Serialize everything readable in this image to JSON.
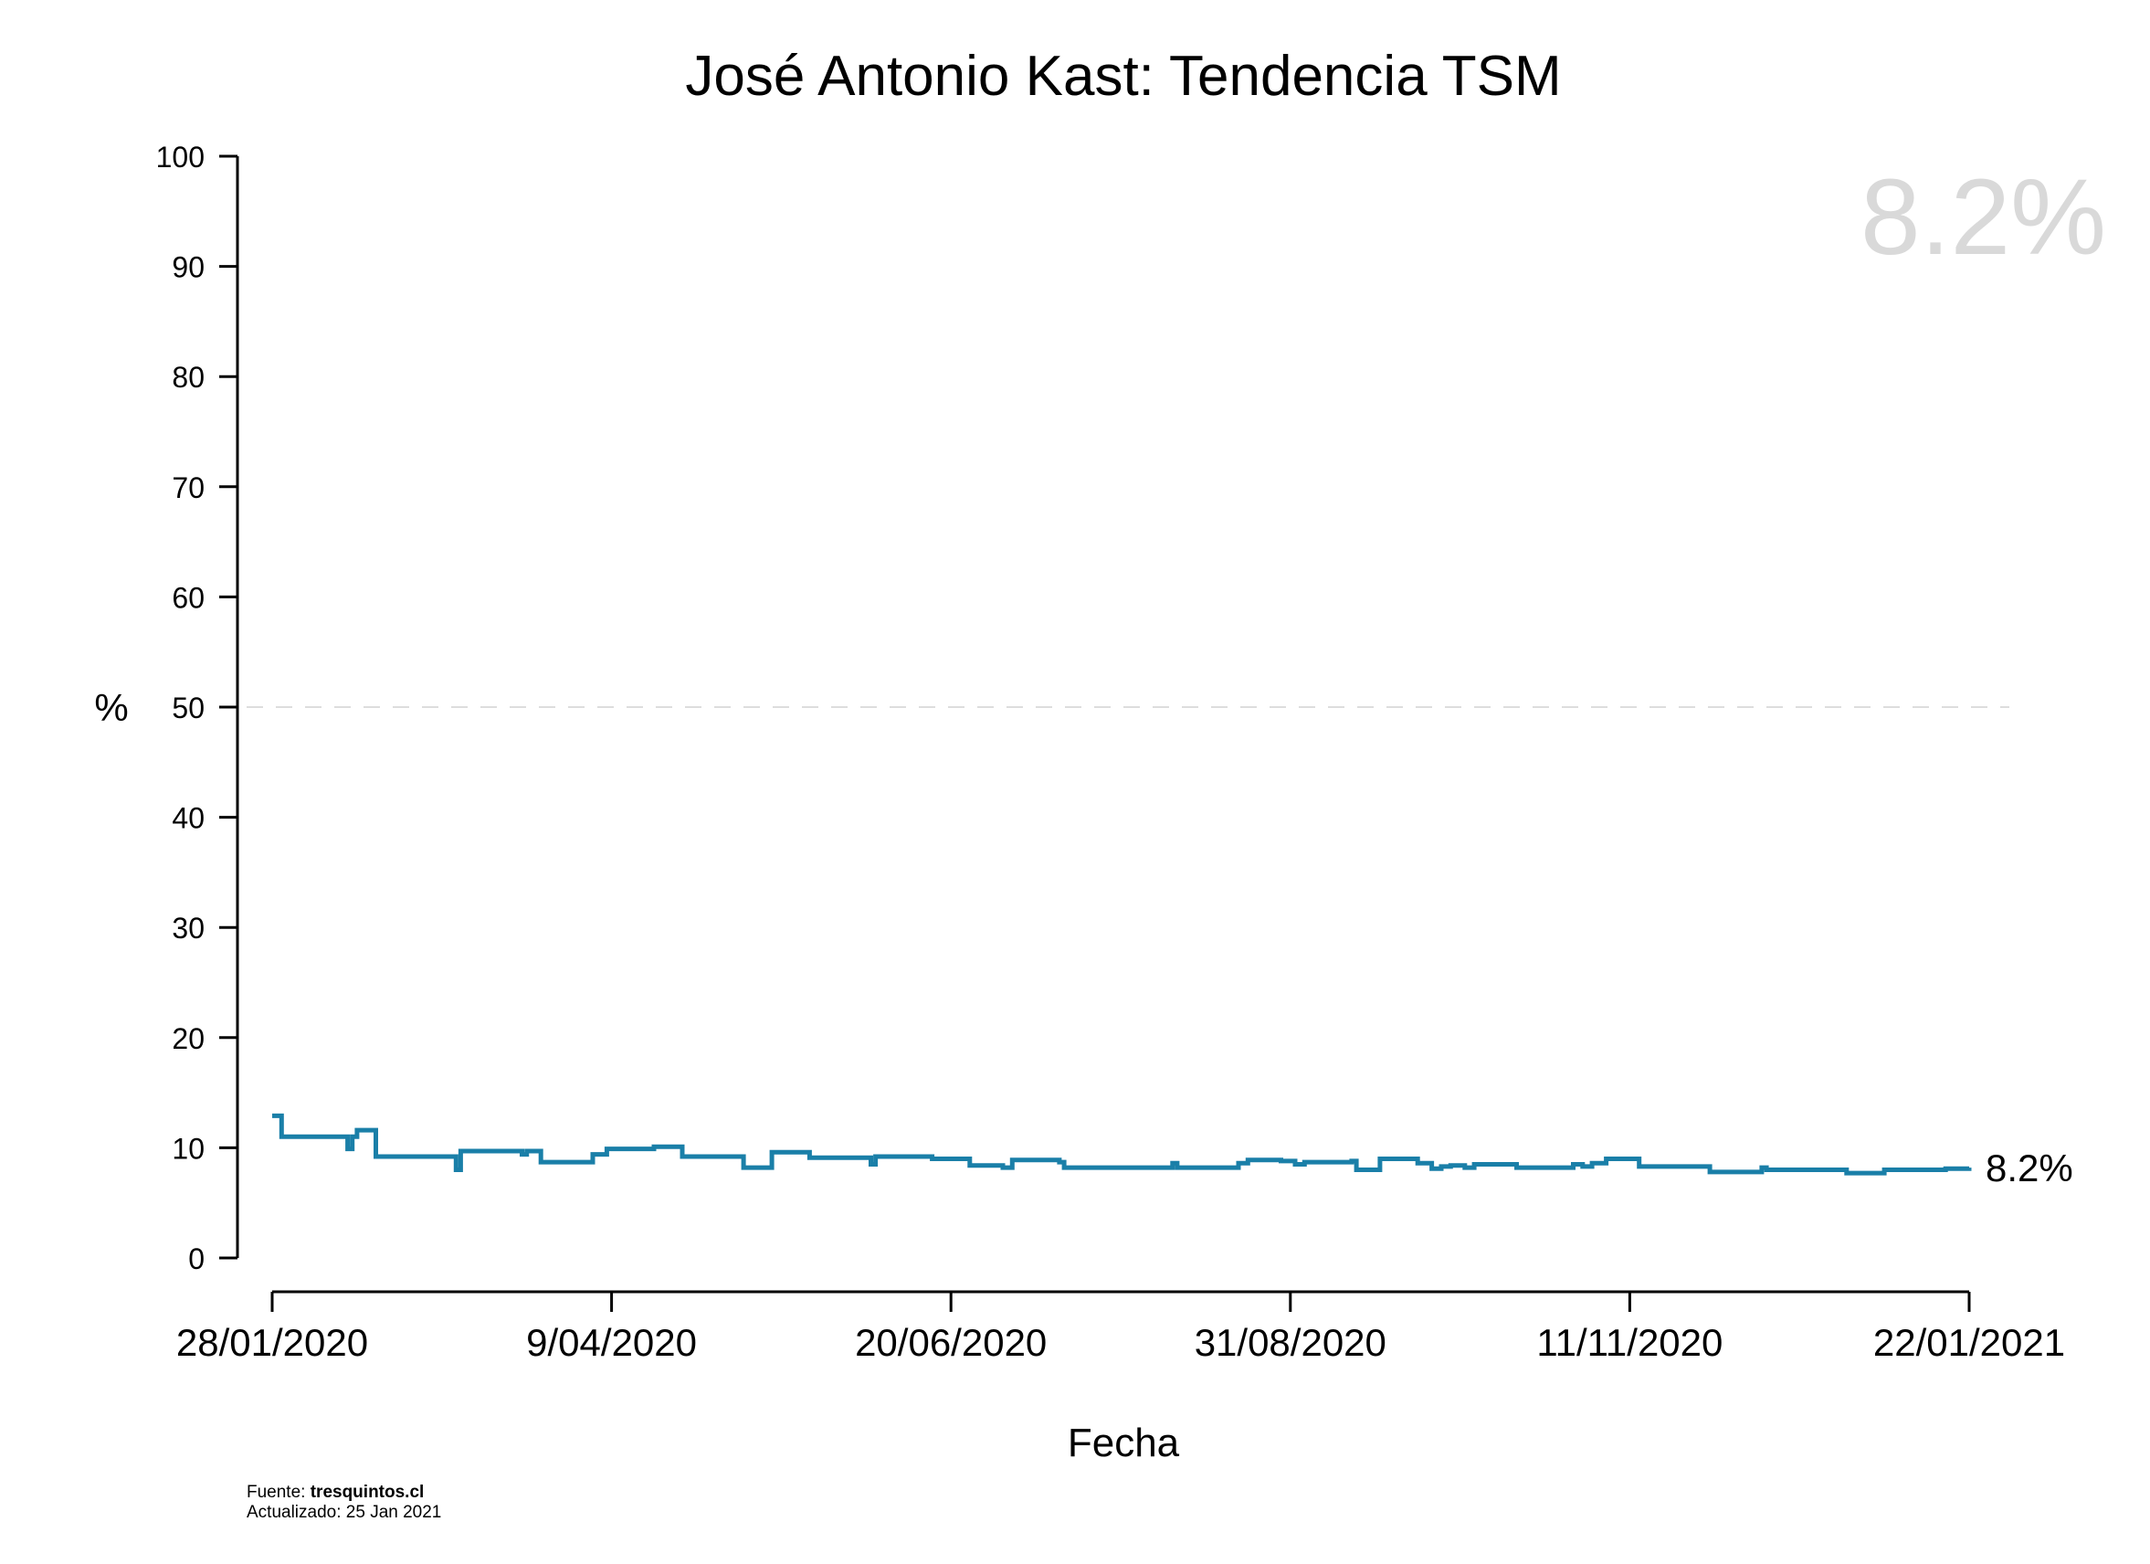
{
  "chart_data": {
    "type": "line",
    "title": "José Antonio Kast: Tendencia TSM",
    "xlabel": "Fecha",
    "ylabel": "%",
    "ylim": [
      0,
      100
    ],
    "yticks": [
      0,
      10,
      20,
      30,
      40,
      50,
      60,
      70,
      80,
      90,
      100
    ],
    "xlim": [
      "2020-01-28",
      "2021-01-22"
    ],
    "xticks": [
      {
        "date": "2020-01-28",
        "label": "28/01/2020"
      },
      {
        "date": "2020-04-09",
        "label": "9/04/2020"
      },
      {
        "date": "2020-06-20",
        "label": "20/06/2020"
      },
      {
        "date": "2020-08-31",
        "label": "31/08/2020"
      },
      {
        "date": "2020-11-11",
        "label": "11/11/2020"
      },
      {
        "date": "2021-01-22",
        "label": "22/01/2021"
      }
    ],
    "reference_line": {
      "y": 50,
      "style": "dashed",
      "color": "#dddddd"
    },
    "line_color": "#1a7fa8",
    "step": true,
    "series": [
      {
        "points": [
          [
            "2020-01-28",
            12.9
          ],
          [
            "2020-01-30",
            11.0
          ],
          [
            "2020-02-12",
            11.0
          ],
          [
            "2020-02-13",
            9.9
          ],
          [
            "2020-02-14",
            11.0
          ],
          [
            "2020-02-15",
            11.6
          ],
          [
            "2020-02-19",
            9.2
          ],
          [
            "2020-03-06",
            9.2
          ],
          [
            "2020-03-07",
            8.0
          ],
          [
            "2020-03-08",
            9.7
          ],
          [
            "2020-03-20",
            9.7
          ],
          [
            "2020-03-21",
            9.4
          ],
          [
            "2020-03-22",
            9.7
          ],
          [
            "2020-03-25",
            8.7
          ],
          [
            "2020-04-05",
            9.4
          ],
          [
            "2020-04-08",
            9.9
          ],
          [
            "2020-04-18",
            10.1
          ],
          [
            "2020-04-24",
            9.2
          ],
          [
            "2020-05-07",
            8.2
          ],
          [
            "2020-05-13",
            9.6
          ],
          [
            "2020-05-21",
            9.1
          ],
          [
            "2020-06-02",
            9.1
          ],
          [
            "2020-06-03",
            8.5
          ],
          [
            "2020-06-04",
            9.2
          ],
          [
            "2020-06-16",
            9.0
          ],
          [
            "2020-06-24",
            8.4
          ],
          [
            "2020-07-01",
            8.2
          ],
          [
            "2020-07-03",
            8.9
          ],
          [
            "2020-07-13",
            8.7
          ],
          [
            "2020-07-14",
            8.2
          ],
          [
            "2020-08-02",
            8.2
          ],
          [
            "2020-08-06",
            8.6
          ],
          [
            "2020-08-07",
            8.2
          ],
          [
            "2020-08-20",
            8.6
          ],
          [
            "2020-08-22",
            8.9
          ],
          [
            "2020-08-29",
            8.8
          ],
          [
            "2020-09-01",
            8.5
          ],
          [
            "2020-09-03",
            8.7
          ],
          [
            "2020-09-13",
            8.8
          ],
          [
            "2020-09-14",
            8.0
          ],
          [
            "2020-09-19",
            9.0
          ],
          [
            "2020-09-27",
            8.6
          ],
          [
            "2020-09-30",
            8.1
          ],
          [
            "2020-10-02",
            8.3
          ],
          [
            "2020-10-04",
            8.4
          ],
          [
            "2020-10-07",
            8.2
          ],
          [
            "2020-10-09",
            8.5
          ],
          [
            "2020-10-18",
            8.2
          ],
          [
            "2020-10-30",
            8.5
          ],
          [
            "2020-11-01",
            8.3
          ],
          [
            "2020-11-03",
            8.6
          ],
          [
            "2020-11-06",
            9.0
          ],
          [
            "2020-11-13",
            8.3
          ],
          [
            "2020-11-28",
            7.8
          ],
          [
            "2020-12-09",
            8.2
          ],
          [
            "2020-12-10",
            8.0
          ],
          [
            "2020-12-27",
            7.7
          ],
          [
            "2021-01-04",
            8.0
          ],
          [
            "2021-01-17",
            8.1
          ],
          [
            "2021-01-22",
            8.2
          ]
        ]
      }
    ],
    "last_value_label": "8.2%",
    "big_value_label": "8.2%",
    "big_value_color": "#d9d9d9"
  },
  "footer": {
    "source_prefix": "Fuente: ",
    "source_name": "tresquintos.cl",
    "updated": "Actualizado: 25 Jan 2021"
  }
}
